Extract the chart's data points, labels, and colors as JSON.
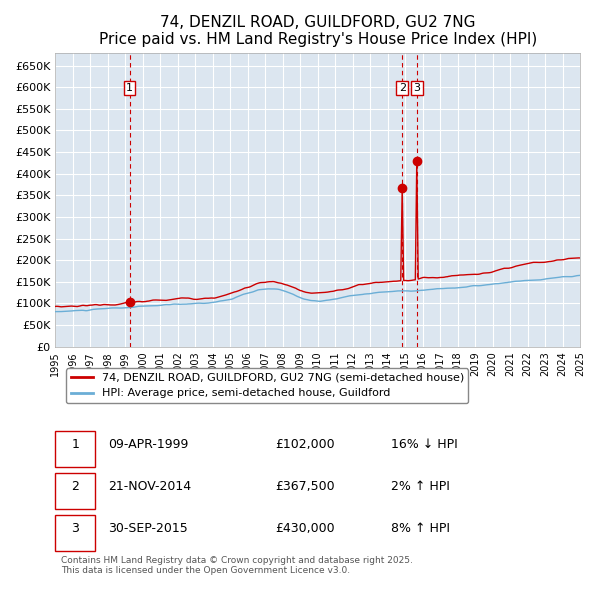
{
  "title": "74, DENZIL ROAD, GUILDFORD, GU2 7NG",
  "subtitle": "Price paid vs. HM Land Registry's House Price Index (HPI)",
  "bg_color": "#dce6f0",
  "plot_bg_color": "#dce6f0",
  "red_line_color": "#cc0000",
  "blue_line_color": "#6baed6",
  "grid_color": "#ffffff",
  "dashed_line_color": "#cc0000",
  "ylim": [
    0,
    680000
  ],
  "yticks": [
    0,
    50000,
    100000,
    150000,
    200000,
    250000,
    300000,
    350000,
    400000,
    450000,
    500000,
    550000,
    600000,
    650000
  ],
  "ytick_labels": [
    "£0",
    "£50K",
    "£100K",
    "£150K",
    "£200K",
    "£250K",
    "£300K",
    "£350K",
    "£400K",
    "£450K",
    "£500K",
    "£550K",
    "£600K",
    "£650K"
  ],
  "sale_dates": [
    "1999-04-09",
    "2014-11-21",
    "2015-09-30"
  ],
  "sale_prices": [
    102000,
    367500,
    430000
  ],
  "sale_labels": [
    "1",
    "2",
    "3"
  ],
  "legend_red": "74, DENZIL ROAD, GUILDFORD, GU2 7NG (semi-detached house)",
  "legend_blue": "HPI: Average price, semi-detached house, Guildford",
  "table_rows": [
    {
      "num": "1",
      "date": "09-APR-1999",
      "price": "£102,000",
      "hpi": "16% ↓ HPI"
    },
    {
      "num": "2",
      "date": "21-NOV-2014",
      "price": "£367,500",
      "hpi": "2% ↑ HPI"
    },
    {
      "num": "3",
      "date": "30-SEP-2015",
      "price": "£430,000",
      "hpi": "8% ↑ HPI"
    }
  ],
  "footnote": "Contains HM Land Registry data © Crown copyright and database right 2025.\nThis data is licensed under the Open Government Licence v3.0."
}
